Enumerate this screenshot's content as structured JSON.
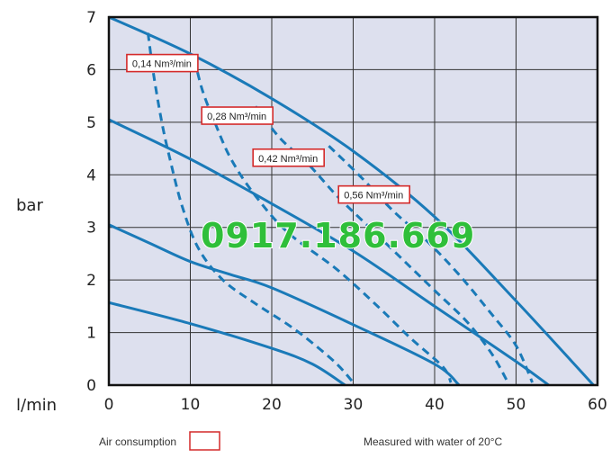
{
  "chart_data": {
    "type": "line",
    "ylabel": "bar",
    "xlabel": "l/min",
    "xlim": [
      0,
      60
    ],
    "ylim": [
      0,
      7
    ],
    "x_ticks": [
      0,
      10,
      20,
      30,
      40,
      50,
      60
    ],
    "y_ticks": [
      0,
      1,
      2,
      3,
      4,
      5,
      6,
      7
    ],
    "grid": true,
    "colors": {
      "curve": "#1a7ab8",
      "plot_bg": "#dde0ee",
      "label_border": "#d42a2a",
      "watermark": "#2fbf3a"
    },
    "series": [
      {
        "style": "solid",
        "points": [
          [
            0,
            7
          ],
          [
            10,
            6.3
          ],
          [
            20,
            5.45
          ],
          [
            30,
            4.45
          ],
          [
            40,
            3.2
          ],
          [
            50,
            1.6
          ],
          [
            59.5,
            0
          ]
        ]
      },
      {
        "style": "solid",
        "points": [
          [
            0,
            5.05
          ],
          [
            10,
            4.3
          ],
          [
            20,
            3.45
          ],
          [
            30,
            2.55
          ],
          [
            40,
            1.5
          ],
          [
            50,
            0.45
          ],
          [
            54,
            0
          ]
        ]
      },
      {
        "style": "solid",
        "points": [
          [
            0,
            3.05
          ],
          [
            5,
            2.7
          ],
          [
            10,
            2.35
          ],
          [
            15,
            2.1
          ],
          [
            20,
            1.85
          ],
          [
            30,
            1.15
          ],
          [
            40,
            0.4
          ],
          [
            43,
            0
          ]
        ]
      },
      {
        "style": "solid",
        "points": [
          [
            0,
            1.57
          ],
          [
            10,
            1.17
          ],
          [
            20,
            0.7
          ],
          [
            25,
            0.4
          ],
          [
            29,
            0
          ]
        ]
      },
      {
        "name": "0,14 Nm³/min",
        "style": "dashed",
        "points": [
          [
            4.8,
            6.7
          ],
          [
            5.5,
            5.9
          ],
          [
            6.5,
            5.0
          ],
          [
            7.5,
            4.3
          ],
          [
            9,
            3.4
          ],
          [
            11,
            2.6
          ],
          [
            14,
            2.0
          ],
          [
            18,
            1.55
          ],
          [
            22,
            1.15
          ],
          [
            25,
            0.8
          ],
          [
            28,
            0.4
          ],
          [
            30,
            0.05
          ]
        ]
      },
      {
        "name": "0,28 Nm³/min",
        "style": "dashed",
        "points": [
          [
            10.5,
            6.2
          ],
          [
            11.5,
            5.6
          ],
          [
            13,
            5.0
          ],
          [
            15,
            4.3
          ],
          [
            18,
            3.6
          ],
          [
            22,
            2.9
          ],
          [
            28,
            2.2
          ],
          [
            33,
            1.5
          ],
          [
            37,
            0.9
          ],
          [
            41,
            0.35
          ],
          [
            42,
            0.05
          ]
        ]
      },
      {
        "name": "0,42 Nm³/min",
        "style": "dashed",
        "points": [
          [
            18,
            5.3
          ],
          [
            21,
            4.7
          ],
          [
            24.5,
            4.2
          ],
          [
            28,
            3.6
          ],
          [
            32,
            3.0
          ],
          [
            36,
            2.4
          ],
          [
            40,
            1.8
          ],
          [
            44,
            1.2
          ],
          [
            47,
            0.6
          ],
          [
            49,
            0.05
          ]
        ]
      },
      {
        "name": "0,56 Nm³/min",
        "style": "dashed",
        "points": [
          [
            27,
            4.55
          ],
          [
            31,
            3.95
          ],
          [
            35,
            3.3
          ],
          [
            39,
            2.75
          ],
          [
            43,
            2.1
          ],
          [
            47,
            1.35
          ],
          [
            50,
            0.75
          ],
          [
            52,
            0.05
          ]
        ]
      }
    ],
    "annotations": [
      {
        "text": "0,14 Nm³/min",
        "x": 2.2,
        "y": 6.1
      },
      {
        "text": "0,28 Nm³/min",
        "x": 11.4,
        "y": 5.1
      },
      {
        "text": "0,42 Nm³/min",
        "x": 17.7,
        "y": 4.3
      },
      {
        "text": "0,56 Nm³/min",
        "x": 28.2,
        "y": 3.6
      }
    ],
    "legend": {
      "text": "Air consumption",
      "placement": "bottom-left"
    },
    "note": "Measured with water of 20°C",
    "watermark": "0917.186.669"
  }
}
